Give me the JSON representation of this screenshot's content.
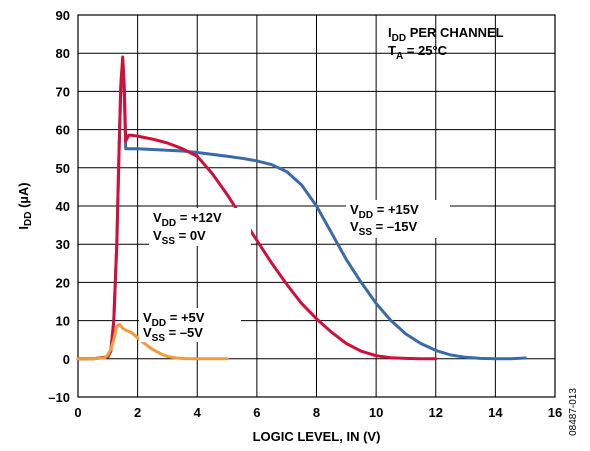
{
  "chart_data": {
    "type": "line",
    "title": "",
    "xlabel": "LOGIC LEVEL, IN (V)",
    "ylabel": "IDD (µA)",
    "ylabel_parts": {
      "main": "I",
      "sub": "DD",
      "rest": " (µA)"
    },
    "xlim": [
      0,
      16
    ],
    "ylim": [
      -10,
      90
    ],
    "x_ticks": [
      0,
      2,
      4,
      6,
      8,
      10,
      12,
      14,
      16
    ],
    "y_ticks": [
      -10,
      0,
      10,
      20,
      30,
      40,
      50,
      60,
      70,
      80,
      90
    ],
    "grid": true,
    "figure_id": "08487-013",
    "header": [
      {
        "main": "I",
        "sub": "DD",
        "rest": " PER CHANNEL"
      },
      {
        "main": "T",
        "sub": "A",
        "rest": " = 25°C"
      }
    ],
    "series": [
      {
        "color": "#3a6aa8",
        "label": [
          {
            "main": "V",
            "sub": "DD",
            "rest": " = +15V"
          },
          {
            "main": "V",
            "sub": "SS",
            "rest": " = –15V"
          }
        ],
        "x": [
          0,
          0.5,
          1.0,
          1.1,
          1.2,
          1.3,
          1.38,
          1.44,
          1.5,
          1.55,
          1.6,
          1.65,
          1.7,
          2.0,
          2.5,
          3.0,
          3.5,
          4.0,
          4.5,
          5.0,
          5.5,
          6.0,
          6.5,
          7.0,
          7.5,
          8.0,
          8.5,
          9.0,
          9.5,
          10.0,
          10.5,
          11.0,
          11.5,
          12.0,
          12.5,
          13.0,
          13.5,
          14.0,
          14.5,
          15.0
        ],
        "y": [
          0,
          0,
          0.5,
          2,
          10,
          30,
          55,
          72,
          78,
          70,
          55,
          55,
          55,
          55,
          54.8,
          54.6,
          54.4,
          54.0,
          53.5,
          53.0,
          52.5,
          51.8,
          50.8,
          49,
          45.5,
          40,
          33,
          26,
          20,
          14.5,
          10,
          6.5,
          4,
          2.2,
          1.0,
          0.4,
          0.1,
          0,
          0,
          0.2
        ]
      },
      {
        "color": "#d0103a",
        "label": [
          {
            "main": "V",
            "sub": "DD",
            "rest": " = +12V"
          },
          {
            "main": "V",
            "sub": "SS",
            "rest": " = 0V"
          }
        ],
        "x": [
          0,
          0.5,
          1.0,
          1.1,
          1.2,
          1.3,
          1.38,
          1.44,
          1.5,
          1.55,
          1.6,
          1.7,
          1.8,
          2.0,
          2.5,
          3.0,
          3.5,
          4.0,
          4.5,
          5.0,
          5.5,
          6.0,
          6.5,
          7.0,
          7.5,
          8.0,
          8.5,
          9.0,
          9.5,
          10.0,
          10.5,
          11.0,
          11.5,
          12.0
        ],
        "y": [
          0,
          0,
          0.5,
          2,
          10,
          30,
          55,
          72,
          79,
          72,
          57,
          58.5,
          58.5,
          58.3,
          57.5,
          56.5,
          55,
          53,
          48.5,
          43,
          37,
          31,
          25,
          19.5,
          14.5,
          10.5,
          7,
          4,
          2,
          0.8,
          0.3,
          0.1,
          0,
          0
        ]
      },
      {
        "color": "#f39a3a",
        "label": [
          {
            "main": "V",
            "sub": "DD",
            "rest": " = +5V"
          },
          {
            "main": "V",
            "sub": "SS",
            "rest": " = –5V"
          }
        ],
        "x": [
          0,
          0.5,
          0.9,
          1.0,
          1.1,
          1.2,
          1.3,
          1.4,
          1.5,
          1.6,
          1.8,
          2.0,
          2.2,
          2.5,
          2.8,
          3.0,
          3.3,
          3.6,
          4.0,
          4.5,
          5.0
        ],
        "y": [
          0,
          0,
          0.3,
          1,
          2.5,
          5,
          8.5,
          9,
          8,
          7.5,
          6.8,
          5.5,
          4.2,
          2.5,
          1.2,
          0.6,
          0.2,
          0.05,
          0,
          0,
          0
        ]
      }
    ]
  }
}
